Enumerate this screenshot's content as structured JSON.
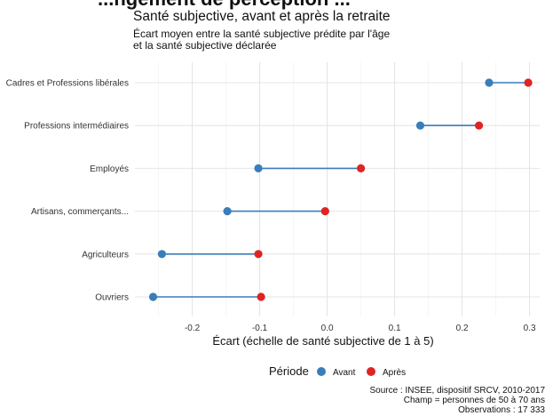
{
  "header": {
    "clipped_text": "...ngement de perception ...",
    "title": "Santé subjective, avant et après la retraite",
    "subtitle_line1": "Écart moyen entre la santé subjective prédite par l'âge",
    "subtitle_line2": "et la santé subjective déclarée"
  },
  "caption": {
    "line1": "Source : INSEE, dispositif SRCV, 2010-2017",
    "line2": "Champ = personnes de 50 à 70 ans",
    "line3": "Observations : 17 333"
  },
  "colors": {
    "avant": "#3a7dbb",
    "apres": "#e02323",
    "segment": "#3a7dbb",
    "grid_major": "#e4e4e4",
    "grid_minor": "#f2f2f2"
  },
  "chart_data": {
    "type": "dumbbell",
    "title": "Santé subjective, avant et après la retraite",
    "subtitle": "Écart moyen entre la santé subjective prédite par l'âge et la santé subjective déclarée",
    "xlabel": "Écart (échelle de santé subjective de 1 à 5)",
    "ylabel": "",
    "xlim": [
      -0.285,
      0.315
    ],
    "xticks": [
      -0.2,
      -0.1,
      0.0,
      0.1,
      0.2,
      0.3
    ],
    "xtick_labels": [
      "-0.2",
      "-0.1",
      "0.0",
      "0.1",
      "0.2",
      "0.3"
    ],
    "grid": true,
    "legend_position": "bottom",
    "legend_title": "Période",
    "categories": [
      "Cadres et Professions libérales",
      "Professions intermédiaires",
      "Employés",
      "Artisans, commerçants...",
      "Agriculteurs",
      "Ouvriers"
    ],
    "series": [
      {
        "name": "Avant",
        "values": [
          0.24,
          0.138,
          -0.102,
          -0.148,
          -0.245,
          -0.258
        ]
      },
      {
        "name": "Après",
        "values": [
          0.298,
          0.225,
          0.05,
          -0.003,
          -0.102,
          -0.098
        ]
      }
    ]
  }
}
